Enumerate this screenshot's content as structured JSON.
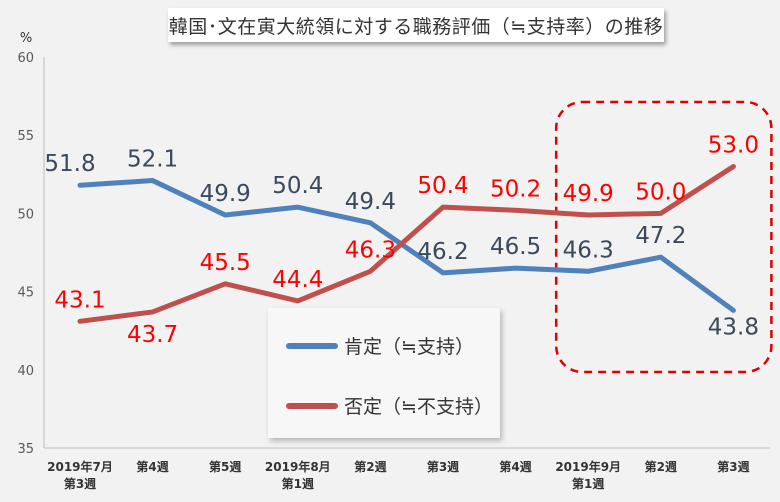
{
  "chart_data": {
    "type": "line",
    "title": "韓国･文在寅大統領に対する職務評価（≒支持率）の推移",
    "ylabel": "%",
    "ylim": [
      35,
      60
    ],
    "yticks": [
      35,
      40,
      45,
      50,
      55,
      60
    ],
    "grid": false,
    "legend_position": "center-bottom",
    "categories": [
      [
        "2019年7月",
        "第3週"
      ],
      [
        "第4週"
      ],
      [
        "第5週"
      ],
      [
        "2019年8月",
        "第1週"
      ],
      [
        "第2週"
      ],
      [
        "第3週"
      ],
      [
        "第4週"
      ],
      [
        "2019年9月",
        "第1週"
      ],
      [
        "第2週"
      ],
      [
        "第3週"
      ]
    ],
    "series": [
      {
        "name": "肯定（≒支持）",
        "color": "#4f81bd",
        "label_color": "#3a4a5c",
        "values": [
          51.8,
          52.1,
          49.9,
          50.4,
          49.4,
          46.2,
          46.5,
          46.3,
          47.2,
          43.8
        ],
        "labels": [
          "51.8",
          "52.1",
          "49.9",
          "50.4",
          "49.4",
          "46.2",
          "46.5",
          "46.3",
          "47.2",
          "43.8"
        ]
      },
      {
        "name": "否定（≒不支持）",
        "color": "#c0504d",
        "label_color": "#ff0000",
        "values": [
          43.1,
          43.7,
          45.5,
          44.4,
          46.3,
          50.4,
          50.2,
          49.9,
          50.0,
          53.0
        ],
        "labels": [
          "43.1",
          "43.7",
          "45.5",
          "44.4",
          "46.3",
          "50.4",
          "50.2",
          "49.9",
          "50.0",
          "53.0"
        ]
      }
    ],
    "highlight": {
      "from_index": 7,
      "to_index": 9,
      "color": "#e00000",
      "style": "dashed"
    }
  }
}
